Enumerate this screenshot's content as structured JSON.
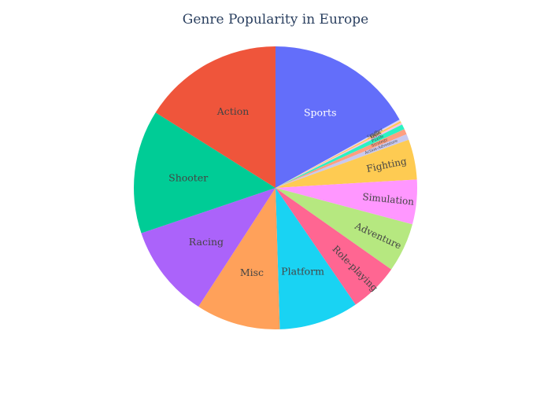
{
  "chart_data": {
    "type": "pie",
    "title": "Genre Popularity in Europe",
    "direction": "clockwise",
    "start": "top",
    "slices": [
      {
        "label": "Sports",
        "value": 376.9,
        "color": "#636efa",
        "text_color": "#ffffff"
      },
      {
        "label": "Sandbox",
        "value": 2.0,
        "color": "#b6e0ff",
        "text_color": "#444444"
      },
      {
        "label": "Party",
        "value": 2.5,
        "color": "#ffc0e3",
        "text_color": "#444444"
      },
      {
        "label": "Music",
        "value": 4.5,
        "color": "#fecb52",
        "text_color": "#444444"
      },
      {
        "label": "MMO",
        "value": 4.8,
        "color": "#ffc0e3",
        "text_color": "#444444"
      },
      {
        "label": "Puzzle",
        "value": 13.0,
        "color": "#2cf2c2",
        "text_color": "#444444"
      },
      {
        "label": "Strategy",
        "value": 13.9,
        "color": "#ff9f80",
        "text_color": "#444444"
      },
      {
        "label": "Action-Adventure",
        "value": 14.5,
        "color": "#c8c8ef",
        "text_color": "#444444"
      },
      {
        "label": "Fighting",
        "value": 101.8,
        "color": "#fecb52",
        "text_color": "#444444"
      },
      {
        "label": "Simulation",
        "value": 113.0,
        "color": "#ff97ff",
        "text_color": "#444444"
      },
      {
        "label": "Adventure",
        "value": 124.9,
        "color": "#b6e880",
        "text_color": "#444444"
      },
      {
        "label": "Role-playing",
        "value": 125.8,
        "color": "#ff6692",
        "text_color": "#444444"
      },
      {
        "label": "Platform",
        "value": 201.5,
        "color": "#19d3f3",
        "text_color": "#444444"
      },
      {
        "label": "Misc",
        "value": 213.8,
        "color": "#ffa15a",
        "text_color": "#444444"
      },
      {
        "label": "Racing",
        "value": 236.5,
        "color": "#ab63fa",
        "text_color": "#444444"
      },
      {
        "label": "Shooter",
        "value": 313.6,
        "color": "#00cc96",
        "text_color": "#444444"
      },
      {
        "label": "Action",
        "value": 356.5,
        "color": "#ef553b",
        "text_color": "#444444"
      }
    ]
  }
}
